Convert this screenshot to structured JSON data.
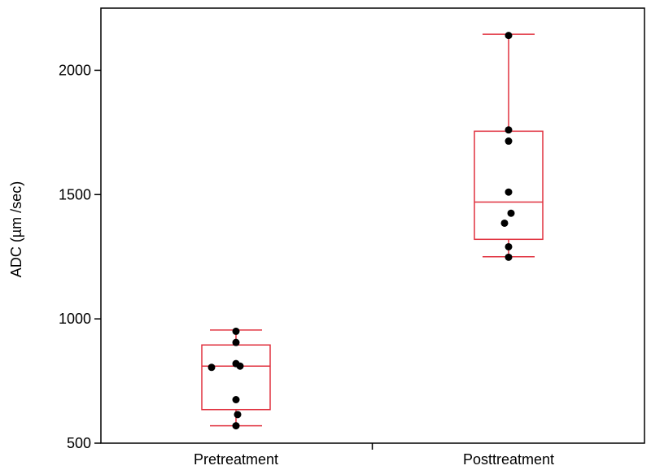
{
  "chart_data": {
    "type": "box",
    "title": "",
    "xlabel": "",
    "ylabel": "ADC (µm /sec)",
    "ylim": [
      500,
      2250
    ],
    "yticks": [
      500,
      1000,
      1500,
      2000
    ],
    "grid": false,
    "categories": [
      "Pretreatment",
      "Posttreatment"
    ],
    "box_color": "#e0303e",
    "point_color": "#000000",
    "boxes": [
      {
        "category": "Pretreatment",
        "whisker_low": 570,
        "q1": 635,
        "median": 810,
        "q3": 895,
        "whisker_high": 955,
        "points": [
          {
            "jitter": 0.0,
            "y": 950
          },
          {
            "jitter": 0.0,
            "y": 905
          },
          {
            "jitter": 0.0,
            "y": 820
          },
          {
            "jitter": 0.05,
            "y": 810
          },
          {
            "jitter": -0.3,
            "y": 805
          },
          {
            "jitter": 0.0,
            "y": 675
          },
          {
            "jitter": 0.02,
            "y": 615
          },
          {
            "jitter": 0.0,
            "y": 570
          }
        ]
      },
      {
        "category": "Posttreatment",
        "whisker_low": 1250,
        "q1": 1320,
        "median": 1470,
        "q3": 1755,
        "whisker_high": 2145,
        "points": [
          {
            "jitter": 0.0,
            "y": 2140
          },
          {
            "jitter": 0.0,
            "y": 1760
          },
          {
            "jitter": 0.0,
            "y": 1715
          },
          {
            "jitter": 0.0,
            "y": 1510
          },
          {
            "jitter": 0.03,
            "y": 1425
          },
          {
            "jitter": -0.05,
            "y": 1385
          },
          {
            "jitter": 0.0,
            "y": 1290
          },
          {
            "jitter": 0.0,
            "y": 1248
          }
        ]
      }
    ]
  }
}
